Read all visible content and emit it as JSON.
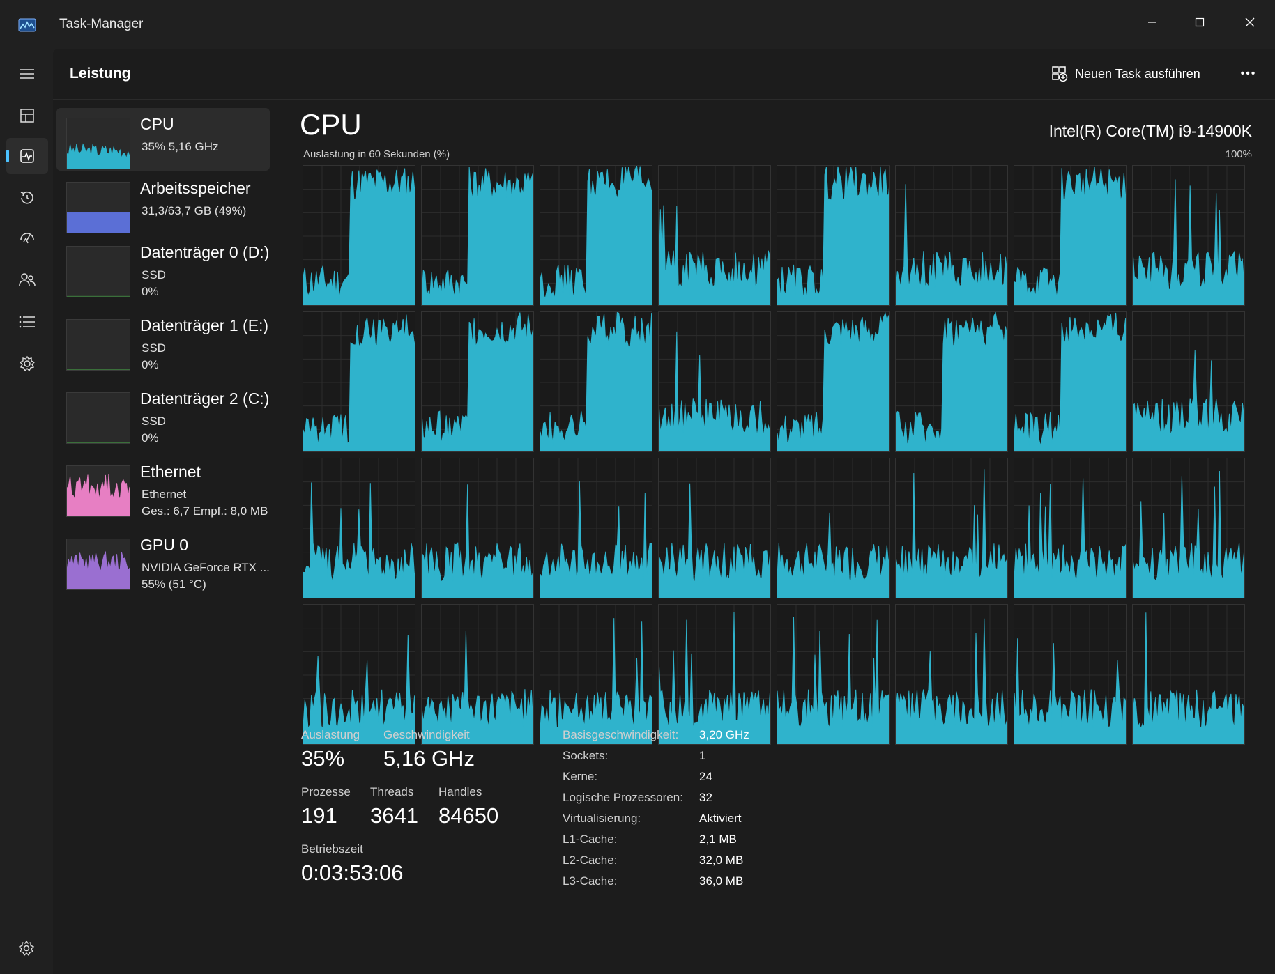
{
  "window": {
    "title": "Task-Manager"
  },
  "colors": {
    "accent": "#4cc2ff",
    "cpu": "#2fb3cc",
    "memory": "#5b6fd6",
    "ethernet": "#e77fc3",
    "gpu": "#9a6fd1"
  },
  "nav": {
    "icons": [
      "hamburger-menu-icon",
      "processes-icon",
      "performance-icon",
      "app-history-icon",
      "startup-apps-icon",
      "users-icon",
      "details-icon",
      "services-icon",
      "settings-icon"
    ],
    "active": "performance-icon"
  },
  "header": {
    "title": "Leistung",
    "run_task": "Neuen Task ausführen",
    "more": "•••"
  },
  "sidebar": {
    "items": [
      {
        "name": "CPU",
        "line1": "35%  5,16 GHz",
        "line2": ""
      },
      {
        "name": "Arbeitsspeicher",
        "line1": "31,3/63,7 GB (49%)",
        "line2": ""
      },
      {
        "name": "Datenträger 0 (D:)",
        "line1": "SSD",
        "line2": "0%"
      },
      {
        "name": "Datenträger 1 (E:)",
        "line1": "SSD",
        "line2": "0%"
      },
      {
        "name": "Datenträger 2 (C:)",
        "line1": "SSD",
        "line2": "0%"
      },
      {
        "name": "Ethernet",
        "line1": "Ethernet",
        "line2": "Ges.: 6,7  Empf.: 8,0 MB"
      },
      {
        "name": "GPU 0",
        "line1": "NVIDIA GeForce RTX ...",
        "line2": "55%  (51 °C)"
      }
    ]
  },
  "cpu": {
    "heading": "CPU",
    "model": "Intel(R) Core(TM) i9-14900K",
    "graph_caption": "Auslastung in 60 Sekunden (%)",
    "graph_max": "100%",
    "core_count_graphs": 32,
    "stats": {
      "auslastung_label": "Auslastung",
      "auslastung_value": "35%",
      "geschwindigkeit_label": "Geschwindigkeit",
      "geschwindigkeit_value": "5,16 GHz",
      "prozesse_label": "Prozesse",
      "prozesse_value": "191",
      "threads_label": "Threads",
      "threads_value": "3641",
      "handles_label": "Handles",
      "handles_value": "84650",
      "betriebszeit_label": "Betriebszeit",
      "betriebszeit_value": "0:03:53:06"
    },
    "details": [
      {
        "label": "Basisgeschwindigkeit:",
        "value": "3,20 GHz"
      },
      {
        "label": "Sockets:",
        "value": "1"
      },
      {
        "label": "Kerne:",
        "value": "24"
      },
      {
        "label": "Logische Prozessoren:",
        "value": "32"
      },
      {
        "label": "Virtualisierung:",
        "value": "Aktiviert"
      },
      {
        "label": "L1-Cache:",
        "value": "2,1 MB"
      },
      {
        "label": "L2-Cache:",
        "value": "32,0 MB"
      },
      {
        "label": "L3-Cache:",
        "value": "36,0 MB"
      }
    ]
  }
}
